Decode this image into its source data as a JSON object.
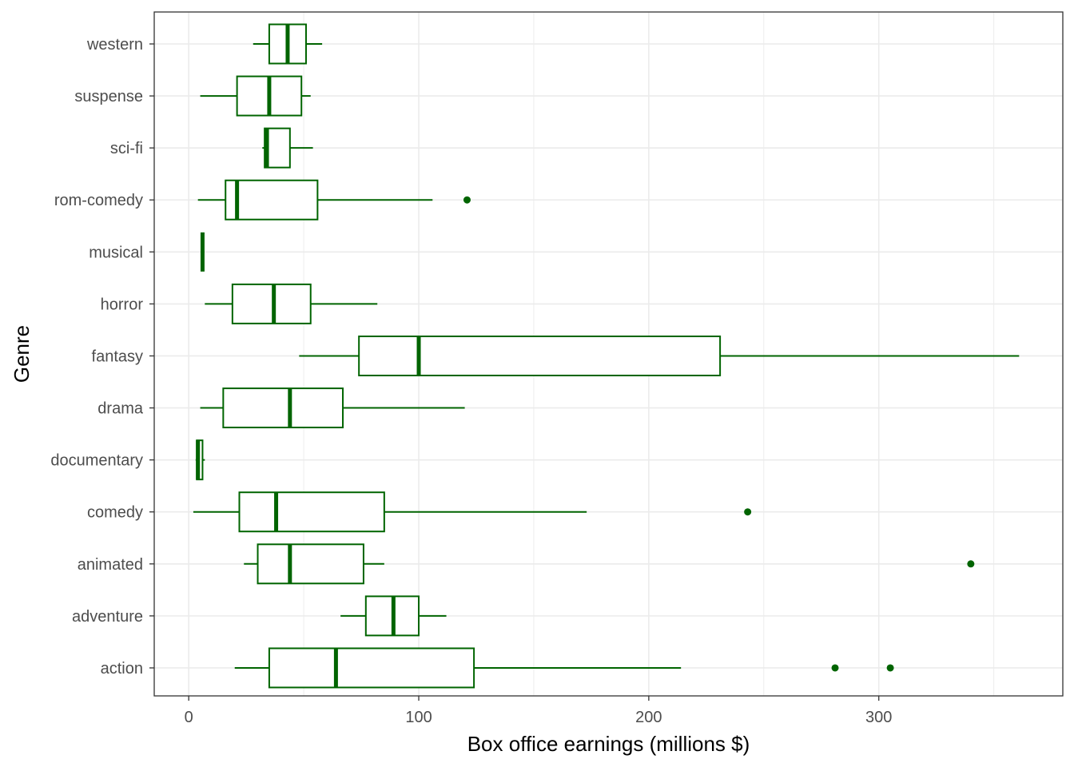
{
  "chart_data": {
    "type": "boxplot",
    "orientation": "horizontal",
    "xlabel": "Box office earnings (millions $)",
    "ylabel": "Genre",
    "xlim": [
      -15,
      380
    ],
    "x_ticks": [
      0,
      100,
      200,
      300
    ],
    "grid": true,
    "color": "#006400",
    "categories": [
      "western",
      "suspense",
      "sci-fi",
      "rom-comedy",
      "musical",
      "horror",
      "fantasy",
      "drama",
      "documentary",
      "comedy",
      "animated",
      "adventure",
      "action"
    ],
    "boxes": [
      {
        "category": "western",
        "whisker_low": 28,
        "q1": 35,
        "median": 43,
        "q3": 51,
        "whisker_high": 58,
        "outliers": []
      },
      {
        "category": "suspense",
        "whisker_low": 5,
        "q1": 21,
        "median": 35,
        "q3": 49,
        "whisker_high": 53,
        "outliers": []
      },
      {
        "category": "sci-fi",
        "whisker_low": 32,
        "q1": 33,
        "median": 34,
        "q3": 44,
        "whisker_high": 54,
        "outliers": []
      },
      {
        "category": "rom-comedy",
        "whisker_low": 4,
        "q1": 16,
        "median": 21,
        "q3": 56,
        "whisker_high": 106,
        "outliers": [
          121
        ]
      },
      {
        "category": "musical",
        "whisker_low": 6,
        "q1": 6,
        "median": 6,
        "q3": 6,
        "whisker_high": 6,
        "outliers": []
      },
      {
        "category": "horror",
        "whisker_low": 7,
        "q1": 19,
        "median": 37,
        "q3": 53,
        "whisker_high": 82,
        "outliers": []
      },
      {
        "category": "fantasy",
        "whisker_low": 48,
        "q1": 74,
        "median": 100,
        "q3": 231,
        "whisker_high": 361,
        "outliers": []
      },
      {
        "category": "drama",
        "whisker_low": 5,
        "q1": 15,
        "median": 44,
        "q3": 67,
        "whisker_high": 120,
        "outliers": []
      },
      {
        "category": "documentary",
        "whisker_low": 3,
        "q1": 3.5,
        "median": 4,
        "q3": 6,
        "whisker_high": 7,
        "outliers": []
      },
      {
        "category": "comedy",
        "whisker_low": 2,
        "q1": 22,
        "median": 38,
        "q3": 85,
        "whisker_high": 173,
        "outliers": [
          243
        ]
      },
      {
        "category": "animated",
        "whisker_low": 24,
        "q1": 30,
        "median": 44,
        "q3": 76,
        "whisker_high": 85,
        "outliers": [
          340
        ]
      },
      {
        "category": "adventure",
        "whisker_low": 66,
        "q1": 77,
        "median": 89,
        "q3": 100,
        "whisker_high": 112,
        "outliers": []
      },
      {
        "category": "action",
        "whisker_low": 20,
        "q1": 35,
        "median": 64,
        "q3": 124,
        "whisker_high": 214,
        "outliers": [
          281,
          305
        ]
      }
    ]
  }
}
